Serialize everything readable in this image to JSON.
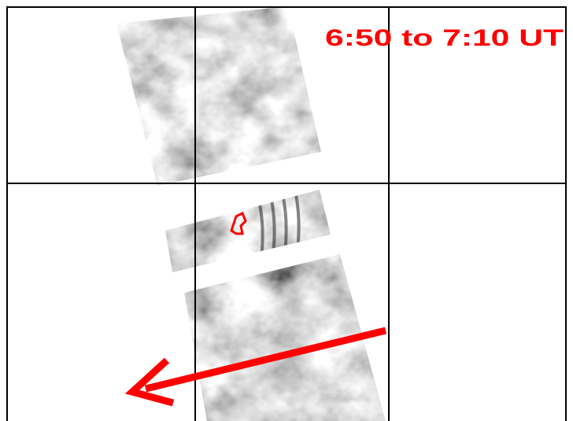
{
  "annotation": {
    "text": "6:50 to 7:10 UT"
  }
}
